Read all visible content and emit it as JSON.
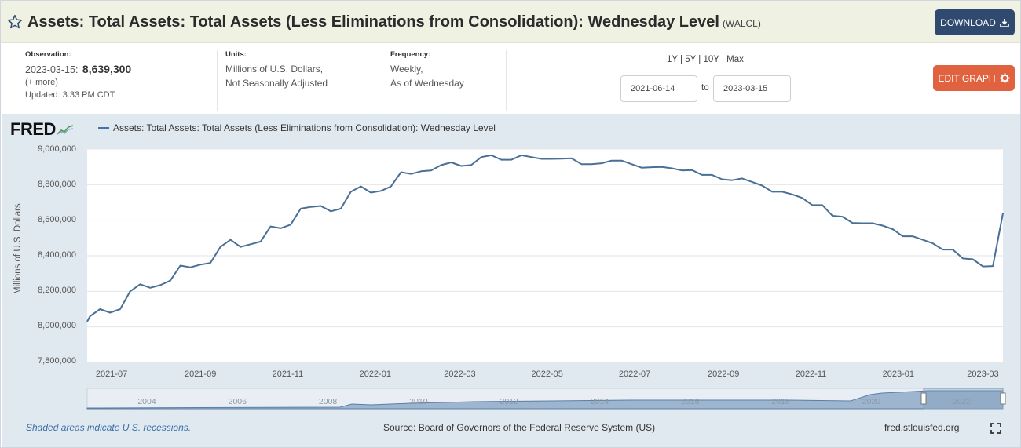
{
  "title": {
    "main": "Assets: Total Assets: Total Assets (Less Eliminations from Consolidation): Wednesday Level",
    "series_id": "(WALCL)",
    "download_label": "DOWNLOAD"
  },
  "observation": {
    "label": "Observation:",
    "date": "2023-03-15:",
    "value": "8,639,300",
    "more": "(+ more)",
    "updated": "Updated: 3:33 PM CDT"
  },
  "units": {
    "label": "Units:",
    "line1": "Millions of U.S. Dollars,",
    "line2": "Not Seasonally Adjusted"
  },
  "frequency": {
    "label": "Frequency:",
    "line1": "Weekly,",
    "line2": "As of Wednesday"
  },
  "range": {
    "links": [
      "1Y",
      "5Y",
      "10Y",
      "Max"
    ],
    "start": "2021-06-14",
    "to_label": "to",
    "end": "2023-03-15"
  },
  "edit_label": "EDIT GRAPH",
  "chart": {
    "logo": "FRED",
    "legend": "Assets: Total Assets: Total Assets (Less Eliminations from Consolidation): Wednesday Level",
    "ylabel": "Millions of U.S. Dollars",
    "yticks": [
      "9,000,000",
      "8,800,000",
      "8,600,000",
      "8,400,000",
      "8,200,000",
      "8,000,000",
      "7,800,000"
    ],
    "xticks": [
      "2021-07",
      "2021-09",
      "2021-11",
      "2022-01",
      "2022-03",
      "2022-05",
      "2022-07",
      "2022-09",
      "2022-11",
      "2023-01",
      "2023-03"
    ],
    "nav_ticks": [
      "2004",
      "2006",
      "2008",
      "2010",
      "2012",
      "2014",
      "2016",
      "2018",
      "2020",
      "2022"
    ],
    "recession_note": "Shaded areas indicate U.S. recessions.",
    "source": "Source: Board of Governors of the Federal Reserve System (US)",
    "url": "fred.stlouisfed.org",
    "line_color": "#4a6f96"
  },
  "chart_data": {
    "type": "line",
    "title": "",
    "xlabel": "",
    "ylabel": "Millions of U.S. Dollars",
    "ylim": [
      7800000,
      9000000
    ],
    "x_range": [
      "2021-06-14",
      "2023-03-15"
    ],
    "series": [
      {
        "name": "Assets: Total Assets: Total Assets (Less Eliminations from Consolidation): Wednesday Level",
        "points": [
          [
            "2021-06-14",
            8030000
          ],
          [
            "2021-06-16",
            8060000
          ],
          [
            "2021-06-23",
            8100000
          ],
          [
            "2021-06-30",
            8080000
          ],
          [
            "2021-07-07",
            8100000
          ],
          [
            "2021-07-14",
            8200000
          ],
          [
            "2021-07-21",
            8240000
          ],
          [
            "2021-07-28",
            8220000
          ],
          [
            "2021-08-04",
            8235000
          ],
          [
            "2021-08-11",
            8260000
          ],
          [
            "2021-08-18",
            8345000
          ],
          [
            "2021-08-25",
            8335000
          ],
          [
            "2021-09-01",
            8350000
          ],
          [
            "2021-09-08",
            8360000
          ],
          [
            "2021-09-15",
            8450000
          ],
          [
            "2021-09-22",
            8490000
          ],
          [
            "2021-09-29",
            8450000
          ],
          [
            "2021-10-06",
            8465000
          ],
          [
            "2021-10-13",
            8480000
          ],
          [
            "2021-10-20",
            8565000
          ],
          [
            "2021-10-27",
            8555000
          ],
          [
            "2021-11-03",
            8575000
          ],
          [
            "2021-11-10",
            8665000
          ],
          [
            "2021-11-17",
            8675000
          ],
          [
            "2021-11-24",
            8680000
          ],
          [
            "2021-12-01",
            8650000
          ],
          [
            "2021-12-08",
            8665000
          ],
          [
            "2021-12-15",
            8760000
          ],
          [
            "2021-12-22",
            8790000
          ],
          [
            "2021-12-29",
            8755000
          ],
          [
            "2022-01-05",
            8765000
          ],
          [
            "2022-01-12",
            8790000
          ],
          [
            "2022-01-19",
            8870000
          ],
          [
            "2022-01-26",
            8860000
          ],
          [
            "2022-02-02",
            8875000
          ],
          [
            "2022-02-09",
            8880000
          ],
          [
            "2022-02-16",
            8910000
          ],
          [
            "2022-02-23",
            8925000
          ],
          [
            "2022-03-02",
            8905000
          ],
          [
            "2022-03-09",
            8910000
          ],
          [
            "2022-03-16",
            8955000
          ],
          [
            "2022-03-23",
            8965000
          ],
          [
            "2022-03-30",
            8940000
          ],
          [
            "2022-04-06",
            8940000
          ],
          [
            "2022-04-13",
            8965000
          ],
          [
            "2022-04-20",
            8955000
          ],
          [
            "2022-04-27",
            8945000
          ],
          [
            "2022-05-04",
            8945000
          ],
          [
            "2022-05-11",
            8946000
          ],
          [
            "2022-05-18",
            8948000
          ],
          [
            "2022-05-25",
            8915000
          ],
          [
            "2022-06-01",
            8915000
          ],
          [
            "2022-06-08",
            8920000
          ],
          [
            "2022-06-15",
            8935000
          ],
          [
            "2022-06-22",
            8935000
          ],
          [
            "2022-06-29",
            8915000
          ],
          [
            "2022-07-06",
            8895000
          ],
          [
            "2022-07-13",
            8898000
          ],
          [
            "2022-07-20",
            8900000
          ],
          [
            "2022-07-27",
            8892000
          ],
          [
            "2022-08-03",
            8880000
          ],
          [
            "2022-08-10",
            8882000
          ],
          [
            "2022-08-17",
            8855000
          ],
          [
            "2022-08-24",
            8855000
          ],
          [
            "2022-08-31",
            8830000
          ],
          [
            "2022-09-07",
            8825000
          ],
          [
            "2022-09-14",
            8835000
          ],
          [
            "2022-09-21",
            8815000
          ],
          [
            "2022-09-28",
            8795000
          ],
          [
            "2022-10-05",
            8760000
          ],
          [
            "2022-10-12",
            8760000
          ],
          [
            "2022-10-19",
            8745000
          ],
          [
            "2022-10-26",
            8725000
          ],
          [
            "2022-11-02",
            8685000
          ],
          [
            "2022-11-09",
            8685000
          ],
          [
            "2022-11-16",
            8625000
          ],
          [
            "2022-11-23",
            8620000
          ],
          [
            "2022-11-30",
            8585000
          ],
          [
            "2022-12-07",
            8583000
          ],
          [
            "2022-12-14",
            8583000
          ],
          [
            "2022-12-21",
            8570000
          ],
          [
            "2022-12-28",
            8550000
          ],
          [
            "2023-01-04",
            8510000
          ],
          [
            "2023-01-11",
            8510000
          ],
          [
            "2023-01-18",
            8490000
          ],
          [
            "2023-01-25",
            8470000
          ],
          [
            "2023-02-01",
            8435000
          ],
          [
            "2023-02-08",
            8435000
          ],
          [
            "2023-02-15",
            8385000
          ],
          [
            "2023-02-22",
            8380000
          ],
          [
            "2023-03-01",
            8340000
          ],
          [
            "2023-03-08",
            8342000
          ],
          [
            "2023-03-15",
            8639300
          ]
        ]
      }
    ],
    "grid": true,
    "legend": "top-left"
  }
}
